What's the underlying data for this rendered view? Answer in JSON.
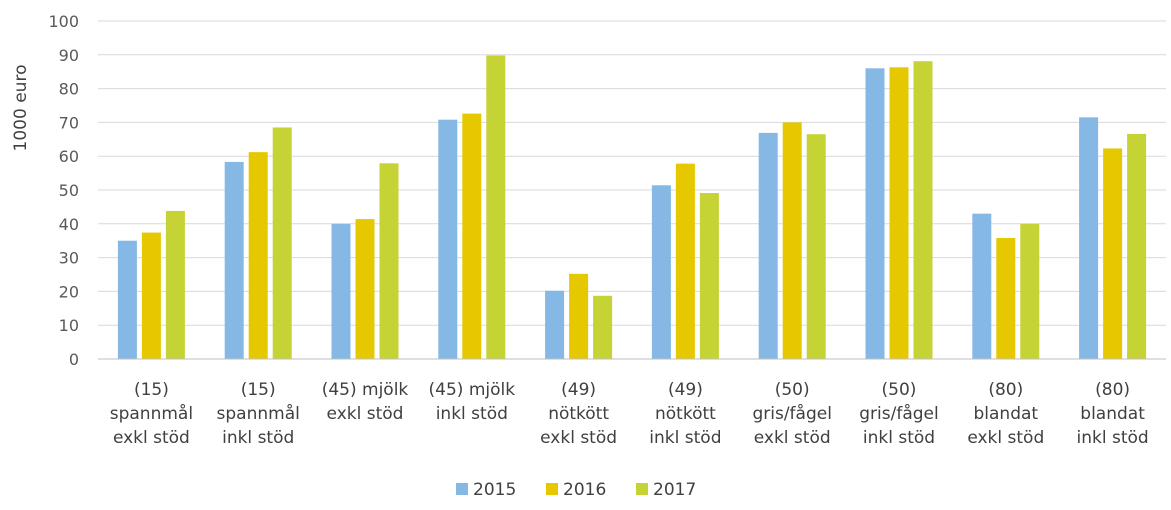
{
  "chart_data": {
    "type": "bar",
    "ylabel": "1000 euro",
    "ylim": [
      0,
      100
    ],
    "yticks": [
      "0",
      "10",
      "20",
      "30",
      "40",
      "50",
      "60",
      "70",
      "80",
      "90",
      "100"
    ],
    "grid": true,
    "legend_position": "bottom",
    "categories": [
      [
        "(15)",
        "spannmål",
        "exkl stöd"
      ],
      [
        "(15)",
        "spannmål",
        "inkl stöd"
      ],
      [
        "(45) mjölk",
        "exkl stöd"
      ],
      [
        "(45) mjölk",
        "inkl stöd"
      ],
      [
        "(49)",
        "nötkött",
        "exkl stöd"
      ],
      [
        "(49)",
        "nötkött",
        "inkl stöd"
      ],
      [
        "(50)",
        "gris/fågel",
        "exkl stöd"
      ],
      [
        "(50)",
        "gris/fågel",
        "inkl stöd"
      ],
      [
        "(80)",
        "blandat",
        "exkl stöd"
      ],
      [
        "(80)",
        "blandat",
        "inkl stöd"
      ]
    ],
    "series": [
      {
        "name": "2015",
        "color": "#85b8e4",
        "values": [
          35,
          58.3,
          40,
          70.8,
          20.2,
          51.4,
          66.9,
          86,
          43,
          71.5
        ]
      },
      {
        "name": "2016",
        "color": "#e6c800",
        "values": [
          37.4,
          61.2,
          41.4,
          72.6,
          25.2,
          57.8,
          70,
          86.3,
          35.8,
          62.3
        ]
      },
      {
        "name": "2017",
        "color": "#c6d334",
        "values": [
          43.8,
          68.5,
          57.9,
          89.8,
          18.7,
          49.1,
          66.5,
          88.1,
          40,
          66.6
        ]
      }
    ]
  }
}
